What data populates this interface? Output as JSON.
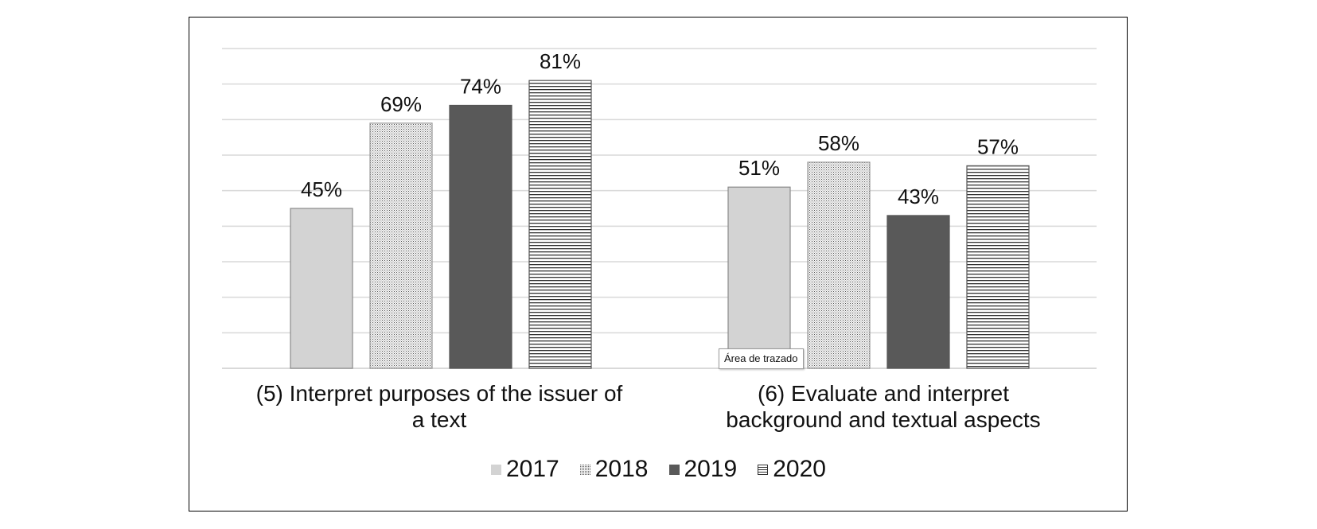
{
  "chart_data": {
    "type": "bar",
    "categories": [
      "(5) Interpret purposes of the issuer of a text",
      "(6) Evaluate and interpret background and textual aspects"
    ],
    "series": [
      {
        "name": "2017",
        "values": [
          45,
          51
        ],
        "labels": [
          "45%",
          "51%"
        ]
      },
      {
        "name": "2018",
        "values": [
          69,
          58
        ],
        "labels": [
          "69%",
          "58%"
        ]
      },
      {
        "name": "2019",
        "values": [
          74,
          43
        ],
        "labels": [
          "74%",
          "43%"
        ]
      },
      {
        "name": "2020",
        "values": [
          81,
          57
        ],
        "labels": [
          "81%",
          "57%"
        ]
      }
    ],
    "ylim": [
      0,
      90
    ],
    "grid": true,
    "legend_position": "bottom",
    "title": "",
    "xlabel": "",
    "ylabel": ""
  },
  "category_text": {
    "cat1_line1": "(5) Interpret purposes of the issuer of",
    "cat1_line2": "a text",
    "cat2_line1": "(6) Evaluate and interpret",
    "cat2_line2": "background and textual aspects"
  },
  "legend": {
    "items": [
      "2017",
      "2018",
      "2019",
      "2020"
    ]
  },
  "tooltip": {
    "text": "Área de trazado"
  },
  "colors": {
    "s2017": "#d3d3d3",
    "s2018": "#ededed",
    "s2019": "#595959",
    "s2020": "#ffffff",
    "grid": "#d9d9d9"
  }
}
